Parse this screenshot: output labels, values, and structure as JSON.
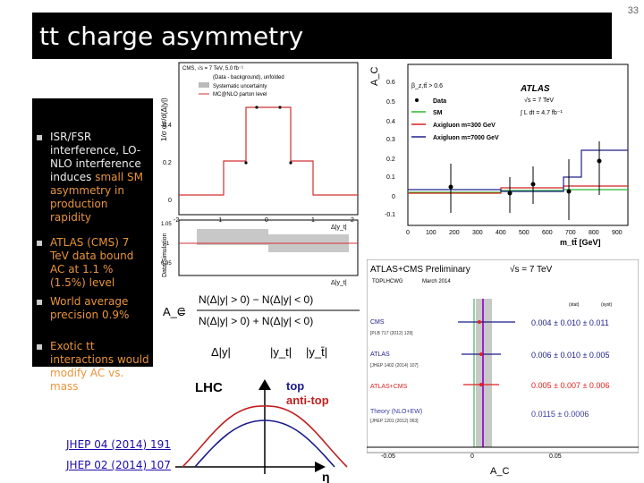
{
  "page_number": "33",
  "title": "tt charge asymmetry",
  "bullets": [
    {
      "parts": [
        {
          "t": "ISR/FSR interference, LO-NLO interference induces "
        },
        {
          "t": "small SM asymmetry in production rapidity",
          "c": "orange"
        }
      ]
    },
    {
      "parts": [
        {
          "t": "ATLAS (CMS) 7 TeV data bound AC at 1.1 % (1.5%) level",
          "c": "orange"
        }
      ]
    },
    {
      "parts": [
        {
          "t": "World average precision 0.9%",
          "c": "orange"
        }
      ]
    },
    {
      "parts": [
        {
          "t": "Exotic tt interactions would modify AC vs. mass",
          "c": "orange"
        }
      ]
    }
  ],
  "links": [
    "JHEP 04 (2014) 191",
    "JHEP 02 (2014) 107"
  ],
  "cms_plot": {
    "header": "CMS, √s = 7 TeV, 5.0 fb⁻¹",
    "legend": [
      "(Data - background), unfolded",
      "Systematic uncertainty",
      "MC@NLO parton level"
    ],
    "ylabel": "1/σ dσ/d(Δ|y|)",
    "xlabel": "Δ|y_t|",
    "ratio_label": "Data/Simulation",
    "y_ticks": [
      "0.4",
      "0.2",
      "0"
    ],
    "ratio_ticks": [
      "1.05",
      "1",
      "0.95"
    ],
    "x_ticks": [
      "-2",
      "-1",
      "0",
      "1",
      "2"
    ]
  },
  "formula": {
    "lhs": "A_C",
    "numerator": "N(Δ|y| > 0) − N(Δ|y| < 0)",
    "denominator": "N(Δ|y| > 0) + N(Δ|y| < 0)",
    "vars": [
      "Δ|y|",
      "|y_t|",
      "|y_t̄|"
    ]
  },
  "lhc_diagram": {
    "title": "LHC",
    "top_label": "top",
    "antitop_label": "anti-top",
    "axis_label": "η"
  },
  "atlas_mass_plot": {
    "ylabel": "A_C",
    "xlabel": "m_tt̄ [GeV]",
    "cut": "β_z,tt̄ > 0.6",
    "experiment": "ATLAS",
    "energy": "√s = 7 TeV",
    "lumi": "∫ L dt = 4.7 fb⁻¹",
    "legend": [
      "Data",
      "SM",
      "Axigluon m=300 GeV",
      "Axigluon m=7000 GeV"
    ],
    "legend_colors": [
      "#000000",
      "#2db82d",
      "#d42020",
      "#20208a"
    ],
    "y_ticks": [
      "0.6",
      "0.5",
      "0.4",
      "0.3",
      "0.2",
      "0.1",
      "0",
      "-0.1"
    ],
    "x_ticks": [
      "0",
      "100",
      "200",
      "300",
      "400",
      "500",
      "600",
      "700",
      "800",
      "900"
    ]
  },
  "combo_plot": {
    "header": "ATLAS+CMS Preliminary",
    "energy": "√s = 7 TeV",
    "sub1": "TOPLHCWG",
    "sub2": "March 2014",
    "col1": "(stat)",
    "col2": "(syst)",
    "xlabel": "A_C",
    "x_ticks": [
      "-0.05",
      "0",
      "0.05"
    ],
    "entries": [
      {
        "name": "CMS",
        "ref": "[PLB 717 (2012) 129]",
        "value": "0.004 ± 0.010 ± 0.011",
        "color": "#1a1a8a"
      },
      {
        "name": "ATLAS",
        "ref": "[JHEP 1402 (2014) 107]",
        "value": "0.006 ± 0.010 ± 0.005",
        "color": "#1a1a8a"
      },
      {
        "name": "ATLAS+CMS",
        "ref": "",
        "value": "0.005 ± 0.007 ± 0.006",
        "color": "#e02020"
      },
      {
        "name": "Theory (NLO+EW)",
        "ref": "[JHEP 1201 (2012) 063]",
        "value": "0.0115 ± 0.0006",
        "color": "#3a3aa0"
      }
    ]
  }
}
